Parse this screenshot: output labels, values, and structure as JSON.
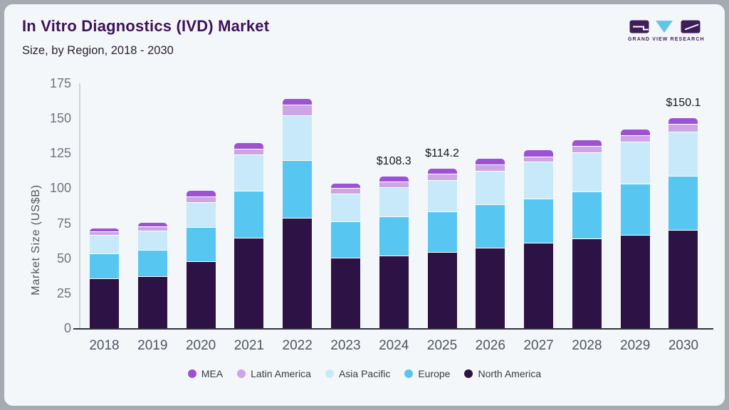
{
  "header": {
    "title": "In Vitro Diagnostics (IVD) Market",
    "subtitle": "Size, by Region, 2018 - 2030"
  },
  "logo": {
    "caption": "GRAND VIEW RESEARCH"
  },
  "theme": {
    "frame": "#a6abb2",
    "card_bg": "#f4f7fa",
    "accent_purple": "#3f1159",
    "logo_purple": "#3e1d58",
    "logo_blue": "#5fc6ea"
  },
  "chart_data": {
    "type": "bar",
    "stacked": true,
    "title": "In Vitro Diagnostics (IVD) Market Size, by Region, 2018 - 2030",
    "xlabel": "",
    "ylabel": "Market Size (US$B)",
    "ylim": [
      0,
      175
    ],
    "yticks": [
      0,
      25,
      50,
      75,
      100,
      125,
      150,
      175
    ],
    "grid": false,
    "legend_position": "bottom",
    "categories": [
      2018,
      2019,
      2020,
      2021,
      2022,
      2023,
      2024,
      2025,
      2026,
      2027,
      2028,
      2029,
      2030
    ],
    "series": [
      {
        "name": "North America",
        "color": "#2d1245",
        "values": [
          35.2,
          36.5,
          47.5,
          64.0,
          78.3,
          49.8,
          51.4,
          53.8,
          56.9,
          60.3,
          63.4,
          66.3,
          69.8
        ]
      },
      {
        "name": "Europe",
        "color": "#57c7f2",
        "values": [
          17.5,
          18.8,
          24.4,
          33.5,
          41.5,
          25.8,
          28.0,
          29.3,
          31.1,
          32.0,
          34.0,
          36.7,
          38.6
        ]
      },
      {
        "name": "Asia Pacific",
        "color": "#c7e9f9",
        "values": [
          13.5,
          13.8,
          17.8,
          26.0,
          32.0,
          20.0,
          20.6,
          22.4,
          24.1,
          26.3,
          28.0,
          29.7,
          31.7
        ]
      },
      {
        "name": "Latin America",
        "color": "#cda4e6",
        "values": [
          2.6,
          3.4,
          3.9,
          4.3,
          7.6,
          3.9,
          4.2,
          4.2,
          4.3,
          3.7,
          4.2,
          4.6,
          5.2
        ]
      },
      {
        "name": "MEA",
        "color": "#9c52d2",
        "values": [
          2.6,
          3.0,
          4.6,
          4.7,
          4.6,
          3.8,
          4.1,
          4.5,
          4.7,
          4.8,
          4.8,
          4.7,
          4.8
        ]
      }
    ],
    "totals": [
      71.4,
      75.5,
      98.2,
      132.5,
      164.0,
      103.3,
      108.3,
      114.2,
      121.1,
      127.1,
      134.4,
      142.0,
      150.1
    ],
    "annotations": [
      {
        "year": 2024,
        "label": "$108.3"
      },
      {
        "year": 2025,
        "label": "$114.2"
      },
      {
        "year": 2030,
        "label": "$150.1"
      }
    ],
    "legend_order": [
      "MEA",
      "Latin America",
      "Asia Pacific",
      "Europe",
      "North America"
    ]
  }
}
